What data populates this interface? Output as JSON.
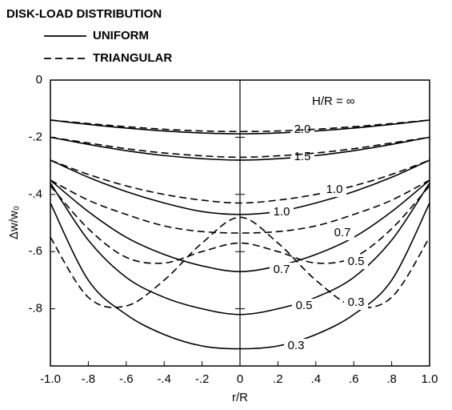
{
  "chart_data": {
    "type": "line",
    "legend_title": "DISK-LOAD DISTRIBUTION",
    "x_label": "r/R",
    "y_label": "Δw/w₀",
    "annotation": "H/R = ∞",
    "xlim": [
      -1,
      1
    ],
    "ylim": [
      -1,
      0
    ],
    "xticks": [
      {
        "value": -1,
        "label": "-1.0"
      },
      {
        "value": -0.8,
        "label": "-.8"
      },
      {
        "value": -0.6,
        "label": "-.6"
      },
      {
        "value": -0.4,
        "label": "-.4"
      },
      {
        "value": -0.2,
        "label": "-.2"
      },
      0,
      {
        "value": 0.2,
        "label": ".2"
      },
      {
        "value": 0.4,
        "label": ".4"
      },
      {
        "value": 0.6,
        "label": ".6"
      },
      {
        "value": 0.8,
        "label": ".8"
      },
      {
        "value": 1,
        "label": "1.0"
      }
    ],
    "yticks": [
      0,
      {
        "value": -0.2,
        "label": "-.2"
      },
      {
        "value": -0.4,
        "label": "-.4"
      },
      {
        "value": -0.6,
        "label": "-.6"
      },
      {
        "value": -0.8,
        "label": "-.8"
      }
    ],
    "x": [
      -1,
      -0.8,
      -0.6,
      -0.4,
      -0.2,
      0,
      0.2,
      0.4,
      0.6,
      0.8,
      1
    ],
    "color": "#000000",
    "groups": [
      {
        "name": "UNIFORM",
        "dashed": false,
        "series": [
          {
            "label": "2.0",
            "values": [
              -0.14,
              -0.155,
              -0.168,
              -0.178,
              -0.185,
              -0.188,
              -0.185,
              -0.178,
              -0.168,
              -0.155,
              -0.14
            ]
          },
          {
            "label": "1.5",
            "values": [
              -0.2,
              -0.225,
              -0.247,
              -0.264,
              -0.275,
              -0.28,
              -0.275,
              -0.264,
              -0.247,
              -0.225,
              -0.2
            ]
          },
          {
            "label": "1.0",
            "values": [
              -0.28,
              -0.34,
              -0.39,
              -0.43,
              -0.46,
              -0.47,
              -0.46,
              -0.43,
              -0.39,
              -0.34,
              -0.28
            ]
          },
          {
            "label": "0.7",
            "values": [
              -0.35,
              -0.46,
              -0.55,
              -0.61,
              -0.65,
              -0.67,
              -0.65,
              -0.61,
              -0.55,
              -0.46,
              -0.35
            ]
          },
          {
            "label": "0.5",
            "values": [
              -0.36,
              -0.56,
              -0.69,
              -0.76,
              -0.8,
              -0.82,
              -0.8,
              -0.76,
              -0.69,
              -0.56,
              -0.36
            ]
          },
          {
            "label": "0.3",
            "values": [
              -0.43,
              -0.7,
              -0.82,
              -0.89,
              -0.93,
              -0.94,
              -0.93,
              -0.89,
              -0.82,
              -0.7,
              -0.43
            ]
          }
        ]
      },
      {
        "name": "TRIANGULAR",
        "dashed": true,
        "series": [
          {
            "label": null,
            "values": [
              -0.14,
              -0.152,
              -0.163,
              -0.172,
              -0.178,
              -0.18,
              -0.178,
              -0.172,
              -0.163,
              -0.152,
              -0.14
            ]
          },
          {
            "label": null,
            "values": [
              -0.2,
              -0.22,
              -0.24,
              -0.255,
              -0.265,
              -0.27,
              -0.265,
              -0.255,
              -0.24,
              -0.22,
              -0.2
            ]
          },
          {
            "label": "1.0",
            "values": [
              -0.28,
              -0.33,
              -0.37,
              -0.4,
              -0.42,
              -0.43,
              -0.42,
              -0.4,
              -0.37,
              -0.33,
              -0.28
            ]
          },
          {
            "label": "0.7",
            "values": [
              -0.35,
              -0.42,
              -0.47,
              -0.51,
              -0.53,
              -0.535,
              -0.53,
              -0.51,
              -0.47,
              -0.42,
              -0.35
            ]
          },
          {
            "label": "0.5",
            "values": [
              -0.37,
              -0.52,
              -0.62,
              -0.64,
              -0.6,
              -0.57,
              -0.6,
              -0.64,
              -0.62,
              -0.52,
              -0.37
            ]
          },
          {
            "label": "0.3",
            "values": [
              -0.55,
              -0.76,
              -0.79,
              -0.7,
              -0.57,
              -0.48,
              -0.57,
              -0.7,
              -0.79,
              -0.76,
              -0.55
            ]
          }
        ]
      }
    ]
  }
}
